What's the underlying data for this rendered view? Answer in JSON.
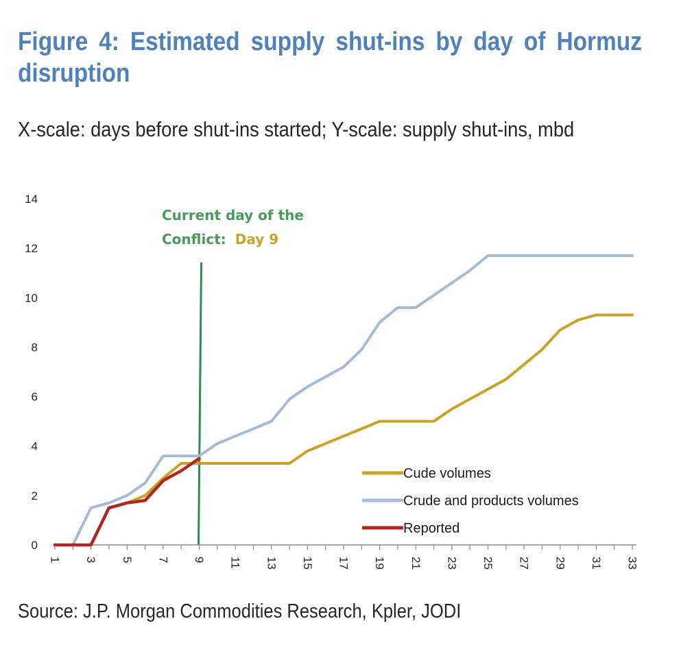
{
  "title": "Figure 4: Estimated supply shut-ins by day of Hormuz disruption",
  "subtitle": "X-scale: days before shut-ins started; Y-scale: supply shut-ins, mbd",
  "source": "Source: J.P. Morgan Commodities Research, Kpler, JODI",
  "colors": {
    "title": "#4f81bd",
    "crude": "#c9a227",
    "crude_products": "#a6b9d9",
    "reported": "#b3261e",
    "current_day_line": "#2e8b57",
    "annotation_green": "#4a9a5c",
    "annotation_gold": "#c9a227",
    "axis": "#8c8c8c"
  },
  "chart_data": {
    "type": "line",
    "title": "Estimated supply shut-ins by day of Hormuz disruption",
    "xlabel": "days before shut-ins started",
    "ylabel": "supply shut-ins, mbd",
    "ylim": [
      0,
      14
    ],
    "yticks": [
      0,
      2,
      4,
      6,
      8,
      10,
      12,
      14
    ],
    "xlim": [
      1,
      33
    ],
    "xtick_labels": [
      "1",
      "3",
      "5",
      "7",
      "9",
      "11",
      "13",
      "15",
      "17",
      "19",
      "21",
      "23",
      "25",
      "27",
      "29",
      "31",
      "33"
    ],
    "legend_position": "bottom-right",
    "series": [
      {
        "name": "Cude volumes",
        "color_key": "crude",
        "x": [
          1,
          2,
          3,
          4,
          5,
          6,
          7,
          8,
          9,
          10,
          11,
          12,
          13,
          14,
          15,
          16,
          17,
          18,
          19,
          20,
          21,
          22,
          23,
          24,
          25,
          26,
          27,
          28,
          29,
          30,
          31,
          32,
          33
        ],
        "values": [
          0,
          0,
          0,
          1.5,
          1.7,
          2.0,
          2.7,
          3.3,
          3.3,
          3.3,
          3.3,
          3.3,
          3.3,
          3.3,
          3.8,
          4.1,
          4.4,
          4.7,
          5.0,
          5.0,
          5.0,
          5.0,
          5.5,
          5.9,
          6.3,
          6.7,
          7.3,
          7.9,
          8.7,
          9.1,
          9.3,
          9.3,
          9.3
        ]
      },
      {
        "name": "Crude and products volumes",
        "color_key": "crude_products",
        "x": [
          1,
          2,
          3,
          4,
          5,
          6,
          7,
          8,
          9,
          10,
          11,
          12,
          13,
          14,
          15,
          16,
          17,
          18,
          19,
          20,
          21,
          22,
          23,
          24,
          25,
          26,
          27,
          28,
          29,
          30,
          31,
          32,
          33
        ],
        "values": [
          0,
          0,
          1.5,
          1.7,
          2.0,
          2.5,
          3.6,
          3.6,
          3.6,
          4.1,
          4.4,
          4.7,
          5.0,
          5.9,
          6.4,
          6.8,
          7.2,
          7.9,
          9.0,
          9.6,
          9.6,
          10.1,
          10.6,
          11.1,
          11.7,
          11.7,
          11.7,
          11.7,
          11.7,
          11.7,
          11.7,
          11.7,
          11.7
        ]
      },
      {
        "name": "Reported",
        "color_key": "reported",
        "x": [
          1,
          2,
          3,
          4,
          5,
          6,
          7,
          8,
          9
        ],
        "values": [
          0,
          0,
          0,
          1.5,
          1.7,
          1.8,
          2.6,
          3.0,
          3.5
        ]
      }
    ],
    "annotation": {
      "line_1": "Current day of the",
      "line_2_prefix": "Conflict:",
      "line_2_highlight": "Day 9",
      "x": 9
    }
  }
}
